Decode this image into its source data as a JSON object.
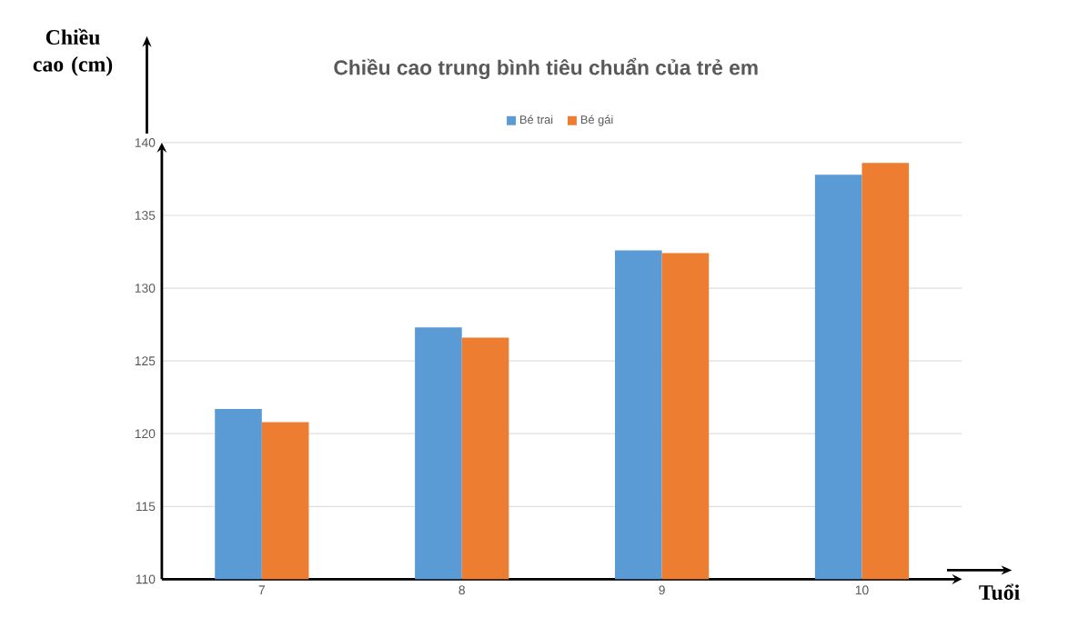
{
  "chart_data": {
    "type": "bar",
    "title": "Chiều cao trung bình tiêu chuẩn của trẻ em",
    "xlabel": "Tuổi",
    "ylabel": "Chiều cao (cm)",
    "categories": [
      "7",
      "8",
      "9",
      "10"
    ],
    "series": [
      {
        "name": "Bé trai",
        "color": "#5b9bd5",
        "values": [
          121.7,
          127.3,
          132.6,
          137.8
        ]
      },
      {
        "name": "Bé gái",
        "color": "#ed7d31",
        "values": [
          120.8,
          126.6,
          132.4,
          138.6
        ]
      }
    ],
    "ylim": [
      110,
      140
    ],
    "yticks": [
      110,
      115,
      120,
      125,
      130,
      135,
      140
    ],
    "grid": "y",
    "legend": "top"
  }
}
